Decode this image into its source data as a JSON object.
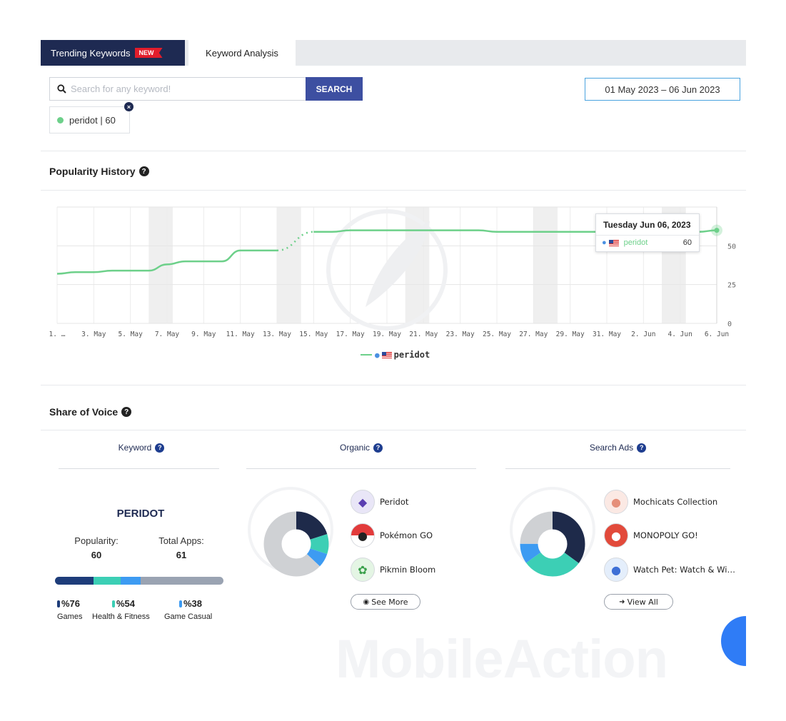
{
  "tabs": {
    "trending_label": "Trending Keywords",
    "new_badge": "NEW",
    "analysis_label": "Keyword Analysis"
  },
  "search": {
    "placeholder": "Search for any keyword!",
    "value": "",
    "button_label": "SEARCH"
  },
  "date_range": "01 May 2023 – 06 Jun 2023",
  "chip": {
    "label": "peridot | 60",
    "close": "×"
  },
  "popularity": {
    "title": "Popularity History",
    "help": "?"
  },
  "chart_data": {
    "type": "line",
    "x": [
      "1. May",
      "2. May",
      "3. May",
      "4. May",
      "5. May",
      "6. May",
      "7. May",
      "8. May",
      "9. May",
      "10. May",
      "11. May",
      "12. May",
      "13. May",
      "14. May",
      "15. May",
      "16. May",
      "17. May",
      "18. May",
      "19. May",
      "20. May",
      "21. May",
      "22. May",
      "23. May",
      "24. May",
      "25. May",
      "26. May",
      "27. May",
      "28. May",
      "29. May",
      "30. May",
      "31. May",
      "1. Jun",
      "2. Jun",
      "3. Jun",
      "4. Jun",
      "5. Jun",
      "6. Jun"
    ],
    "x_tick_labels": [
      "1. …",
      "3. May",
      "5. May",
      "7. May",
      "9. May",
      "11. May",
      "13. May",
      "15. May",
      "17. May",
      "19. May",
      "21. May",
      "23. May",
      "25. May",
      "27. May",
      "29. May",
      "31. May",
      "2. Jun",
      "4. Jun",
      "6. Jun"
    ],
    "series": [
      {
        "name": "peridot",
        "color": "#6dd08a",
        "values": [
          32,
          33,
          33,
          34,
          34,
          34,
          38,
          40,
          40,
          40,
          47,
          47,
          47,
          null,
          59,
          59,
          60,
          60,
          60,
          60,
          60,
          60,
          60,
          60,
          59,
          59,
          59,
          59,
          59,
          59,
          59,
          59,
          59,
          59,
          59,
          59,
          60
        ]
      }
    ],
    "y_ticks": [
      0,
      25,
      50
    ],
    "ylim": [
      0,
      75
    ],
    "grid": true,
    "legend": "bottom",
    "weekend_bands": [
      [
        "6. May",
        "7. May"
      ],
      [
        "13. May",
        "14. May"
      ],
      [
        "20. May",
        "21. May"
      ],
      [
        "27. May",
        "28. May"
      ],
      [
        "3. Jun",
        "4. Jun"
      ]
    ],
    "tooltip": {
      "title": "Tuesday Jun 06, 2023",
      "series_name": "peridot",
      "value": "60"
    },
    "legend_label": "peridot"
  },
  "share_of_voice": {
    "title": "Share of Voice",
    "help": "?",
    "columns": {
      "keyword": "Keyword",
      "organic": "Organic",
      "search_ads": "Search Ads"
    },
    "keyword": {
      "name": "PERIDOT",
      "popularity_label": "Popularity:",
      "popularity_value": "60",
      "total_apps_label": "Total Apps:",
      "total_apps_value": "61",
      "categories": [
        {
          "pct": "%76",
          "name": "Games",
          "color": "#1e3d7a"
        },
        {
          "pct": "%54",
          "name": "Health & Fitness",
          "color": "#3ccfb5"
        },
        {
          "pct": "%38",
          "name": "Game Casual",
          "color": "#3d9bf2"
        }
      ],
      "bar_segments": [
        {
          "color": "#1e3d7a",
          "fraction": 0.23
        },
        {
          "color": "#3ccfb5",
          "fraction": 0.16
        },
        {
          "color": "#3d9bf2",
          "fraction": 0.12
        },
        {
          "color": "#9aa3b2",
          "fraction": 0.49
        }
      ]
    },
    "organic": {
      "apps": [
        {
          "name": "Peridot",
          "icon": "peridot-app-icon"
        },
        {
          "name": "Pokémon GO",
          "icon": "pokemon-go-app-icon"
        },
        {
          "name": "Pikmin Bloom",
          "icon": "pikmin-bloom-app-icon"
        }
      ],
      "donut": [
        {
          "color": "#1e2a4a",
          "share": 0.2
        },
        {
          "color": "#3ccfb5",
          "share": 0.1
        },
        {
          "color": "#3d9bf2",
          "share": 0.07
        },
        {
          "color": "#cfd1d4",
          "share": 0.63
        }
      ],
      "button_label": "See More"
    },
    "search_ads": {
      "apps": [
        {
          "name": "Mochicats Collection",
          "icon": "mochicats-app-icon"
        },
        {
          "name": "MONOPOLY GO!",
          "icon": "monopoly-go-app-icon"
        },
        {
          "name": "Watch Pet: Watch & Wi…",
          "icon": "watch-pet-app-icon"
        }
      ],
      "donut": [
        {
          "color": "#1e2a4a",
          "share": 0.35
        },
        {
          "color": "#3ccfb5",
          "share": 0.3
        },
        {
          "color": "#3d9bf2",
          "share": 0.1
        },
        {
          "color": "#cfd1d4",
          "share": 0.25
        }
      ],
      "button_label": "View All"
    }
  },
  "watermark": "MobileAction"
}
